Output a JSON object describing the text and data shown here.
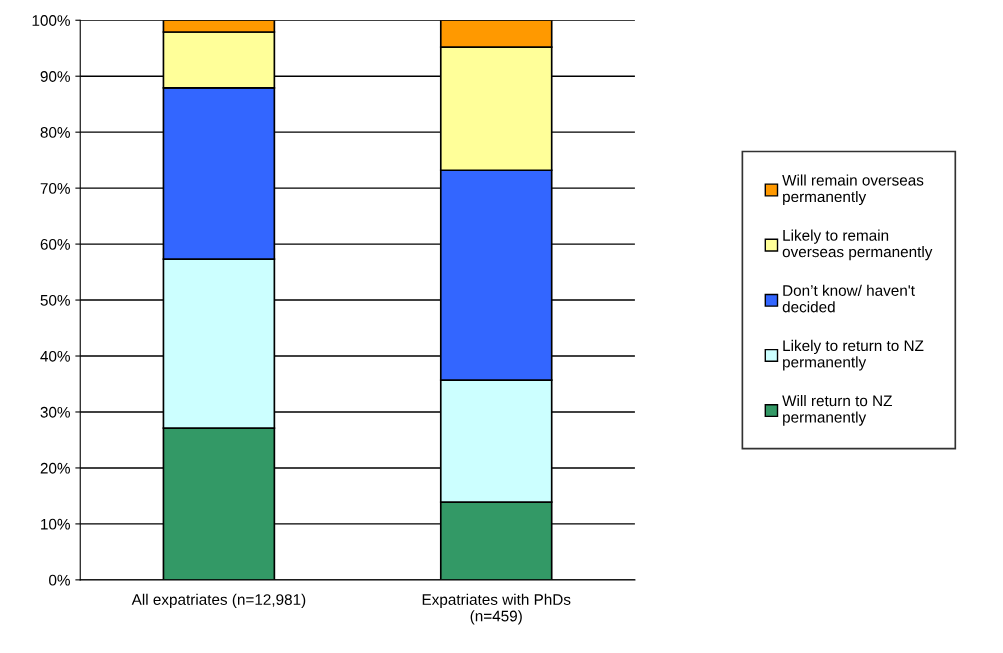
{
  "chart_data": {
    "type": "bar",
    "stacked": true,
    "categories": [
      "All expatriates (n=12,981)",
      "Expatriates with PhDs (n=459)"
    ],
    "series": [
      {
        "name": "Will return to NZ permanently",
        "color": "#339966",
        "values": [
          27.1,
          13.9
        ]
      },
      {
        "name": "Likely to return to NZ permanently",
        "color": "#ccffff",
        "values": [
          30.2,
          21.8
        ]
      },
      {
        "name": "Don’t know/ haven't decided",
        "color": "#3366ff",
        "values": [
          30.6,
          37.5
        ]
      },
      {
        "name": "Likely to remain overseas permanently",
        "color": "#ffff99",
        "values": [
          10.0,
          22.0
        ]
      },
      {
        "name": "Will remain overseas permanently",
        "color": "#ff9900",
        "values": [
          2.1,
          4.8
        ]
      }
    ],
    "ylim": [
      0,
      100
    ],
    "yticks": [
      {
        "value": 0,
        "label": "0%"
      },
      {
        "value": 10,
        "label": "10%"
      },
      {
        "value": 20,
        "label": "20%"
      },
      {
        "value": 30,
        "label": "30%"
      },
      {
        "value": 40,
        "label": "40%"
      },
      {
        "value": 50,
        "label": "50%"
      },
      {
        "value": 60,
        "label": "60%"
      },
      {
        "value": 70,
        "label": "70%"
      },
      {
        "value": 80,
        "label": "80%"
      },
      {
        "value": 90,
        "label": "90%"
      },
      {
        "value": 100,
        "label": "100%"
      }
    ],
    "grid": "y",
    "legend": "right"
  }
}
